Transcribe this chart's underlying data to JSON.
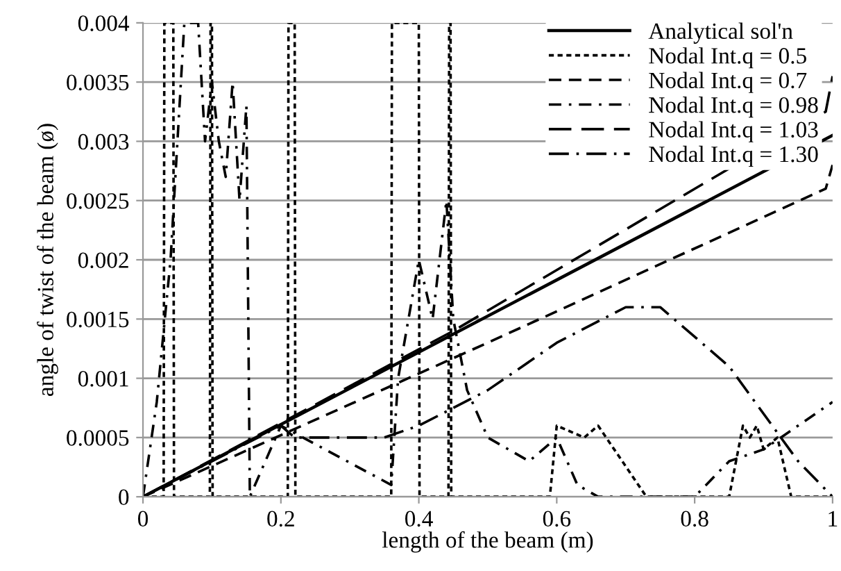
{
  "chart_data": {
    "type": "line",
    "xlabel": "length of the beam (m)",
    "ylabel": "angle of twist of the beam (ø)",
    "xlim": [
      0,
      1
    ],
    "ylim": [
      0,
      0.004
    ],
    "xticks": [
      0,
      0.2,
      0.4,
      0.6,
      0.8,
      1
    ],
    "yticks": [
      0,
      0.0005,
      0.001,
      0.0015,
      0.002,
      0.0025,
      0.003,
      0.0035,
      0.004
    ],
    "grid": "y",
    "legend": "top right",
    "series": [
      {
        "name": "Analytical sol'n",
        "color": "#000000",
        "line_style": "solid",
        "x": [
          0,
          1
        ],
        "values": [
          0,
          0.00305
        ]
      },
      {
        "name": "Nodal Int.q = 0.5",
        "color": "#000000",
        "line_style": "dotted",
        "x": [
          0,
          0.03,
          0.031,
          0.044,
          0.045,
          0.097,
          0.098,
          0.1,
          0.101,
          0.21,
          0.211,
          0.22,
          0.221,
          0.36,
          0.361,
          0.4,
          0.401,
          0.443,
          0.444,
          0.446,
          0.447,
          0.59,
          0.6,
          0.64,
          0.66,
          0.73,
          0.85,
          0.87,
          0.88,
          0.89,
          0.9,
          0.92,
          0.94,
          1
        ],
        "values": [
          0,
          0,
          0.004,
          0.004,
          0,
          0,
          0.004,
          0.004,
          0,
          0,
          0.004,
          0.004,
          0,
          0,
          0.004,
          0.004,
          0,
          0,
          0.004,
          0.004,
          0,
          0,
          0.0006,
          0.0005,
          0.0006,
          0,
          0,
          0.0006,
          0.0005,
          0.0006,
          0.0004,
          0.0005,
          0,
          0
        ]
      },
      {
        "name": "Nodal Int.q = 0.7",
        "color": "#000000",
        "line_style": "dashed",
        "x": [
          0,
          0.5,
          0.99,
          1
        ],
        "values": [
          0,
          0.0013,
          0.0026,
          0.0028
        ]
      },
      {
        "name": "Nodal Int.q = 0.98",
        "color": "#000000",
        "line_style": "dashdotdot",
        "x": [
          0,
          0.02,
          0.04,
          0.06,
          0.08,
          0.09,
          0.1,
          0.11,
          0.12,
          0.13,
          0.14,
          0.15,
          0.155,
          0.2,
          0.36,
          0.37,
          0.4,
          0.42,
          0.44,
          0.45,
          0.47,
          0.5,
          0.53,
          0.56,
          0.6,
          0.63,
          0.66,
          0.8,
          0.85,
          0.9,
          0.95,
          1
        ],
        "values": [
          0,
          0.0008,
          0.002,
          0.004,
          0.004,
          0.003,
          0.0035,
          0.003,
          0.0027,
          0.0035,
          0.0025,
          0.0033,
          0,
          0.0006,
          0.0001,
          0.001,
          0.002,
          0.0015,
          0.0025,
          0.0015,
          0.0009,
          0.0005,
          0.0004,
          0.0003,
          0.0005,
          0.0001,
          0,
          0,
          0.0003,
          0.0004,
          0.0006,
          0.0008
        ]
      },
      {
        "name": "Nodal Int.q = 1.03",
        "color": "#000000",
        "line_style": "longdash",
        "x": [
          0,
          0.45,
          0.99,
          1
        ],
        "values": [
          0,
          0.0014,
          0.00325,
          0.00355
        ]
      },
      {
        "name": "Nodal Int.q = 1.30",
        "color": "#000000",
        "line_style": "dashdot",
        "x": [
          0,
          0.2,
          0.22,
          0.35,
          0.4,
          0.5,
          0.6,
          0.7,
          0.75,
          0.85,
          0.9,
          0.95,
          1
        ],
        "values": [
          0,
          0.0006,
          0.0005,
          0.0005,
          0.0006,
          0.0009,
          0.0013,
          0.0016,
          0.0016,
          0.0011,
          0.0007,
          0.0003,
          0
        ]
      }
    ]
  }
}
